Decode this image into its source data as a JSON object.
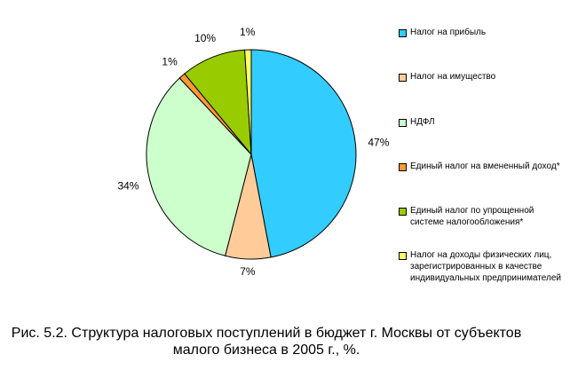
{
  "chart_data": {
    "type": "pie",
    "slices": [
      {
        "label": "Налог на прибыль",
        "value": 47,
        "value_label": "47%",
        "color": "#33CCFF"
      },
      {
        "label": "Налог на имущество",
        "value": 7,
        "value_label": "7%",
        "color": "#FFCC99"
      },
      {
        "label": "НДФЛ",
        "value": 34,
        "value_label": "34%",
        "color": "#CCFFCC"
      },
      {
        "label": "Единый налог на вмененный доход*",
        "value": 1,
        "value_label": "1%",
        "color": "#FF9933"
      },
      {
        "label": "Единый налог по упрощенной\nсистеме налогообложения*",
        "value": 10,
        "value_label": "10%",
        "color": "#99CC00"
      },
      {
        "label": "Налог на доходы физических лиц,\nзарегистрированных в качестве\nиндивидуальных предпринимателей",
        "value": 1,
        "value_label": "1%",
        "color": "#FFFF66"
      }
    ],
    "legend_position": "right"
  },
  "caption": {
    "line1": "Рис. 5.2. Структура налоговых поступлений в бюджет г. Москвы от субъектов",
    "line2": "малого бизнеса в 2005 г., %."
  }
}
